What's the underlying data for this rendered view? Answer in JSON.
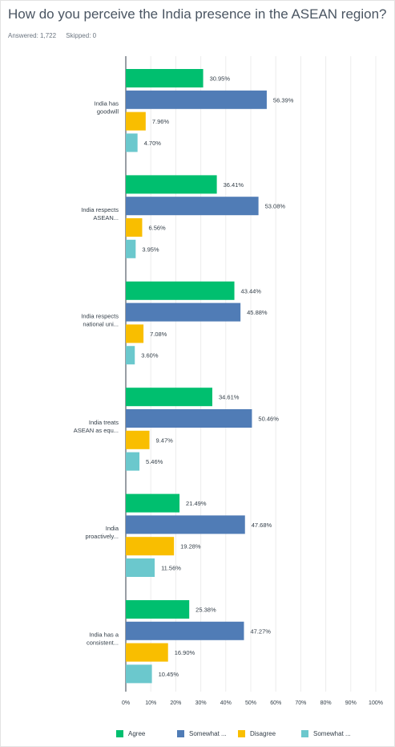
{
  "title": "How do you perceive the India presence in the ASEAN region?",
  "answered": "Answered: 1,722",
  "skipped": "Skipped: 0",
  "chart_data": {
    "type": "bar",
    "orientation": "horizontal",
    "categories": [
      [
        "India has",
        "goodwill"
      ],
      [
        "India respects",
        "ASEAN..."
      ],
      [
        "India respects",
        "national uni..."
      ],
      [
        "India treats",
        "ASEAN as equ..."
      ],
      [
        "India",
        "proactively..."
      ],
      [
        "India has a",
        "consistent..."
      ]
    ],
    "series": [
      {
        "name": "Agree",
        "color": "#00bf6f",
        "values": [
          30.95,
          36.41,
          43.44,
          34.61,
          21.49,
          25.38
        ]
      },
      {
        "name": "Somewhat ...",
        "color": "#507cb6",
        "values": [
          56.39,
          53.08,
          45.88,
          50.46,
          47.68,
          47.27
        ]
      },
      {
        "name": "Disagree",
        "color": "#f9be00",
        "values": [
          7.96,
          6.56,
          7.08,
          9.47,
          19.28,
          16.9
        ]
      },
      {
        "name": "Somewhat ...",
        "color": "#6bc8cd",
        "values": [
          4.7,
          3.95,
          3.6,
          5.46,
          11.56,
          10.45
        ]
      }
    ],
    "data_labels": [
      [
        "30.95%",
        "56.39%",
        "7.96%",
        "4.70%"
      ],
      [
        "36.41%",
        "53.08%",
        "6.56%",
        "3.95%"
      ],
      [
        "43.44%",
        "45.88%",
        "7.08%",
        "3.60%"
      ],
      [
        "34.61%",
        "50.46%",
        "9.47%",
        "5.46%"
      ],
      [
        "21.49%",
        "47.68%",
        "19.28%",
        "11.56%"
      ],
      [
        "25.38%",
        "47.27%",
        "16.90%",
        "10.45%"
      ]
    ],
    "xlim": [
      0,
      100
    ],
    "xticks": [
      "0%",
      "10%",
      "20%",
      "30%",
      "40%",
      "50%",
      "60%",
      "70%",
      "80%",
      "90%",
      "100%"
    ],
    "grid": true,
    "legend": "bottom"
  }
}
